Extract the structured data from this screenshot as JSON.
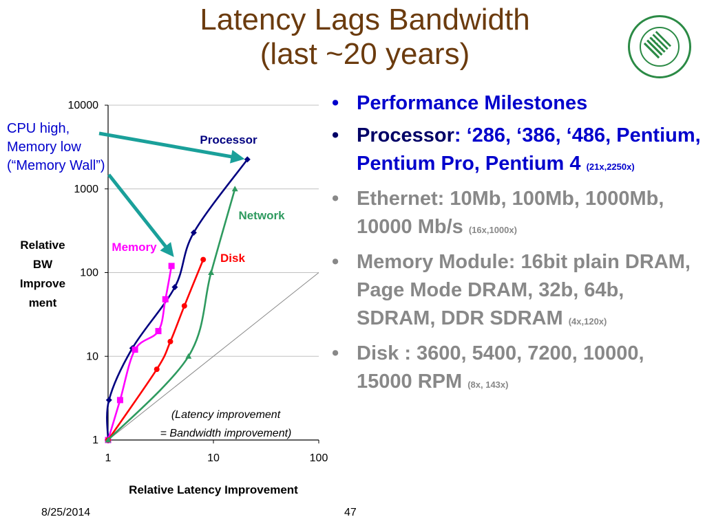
{
  "slide": {
    "title_line1": "Latency Lags Bandwidth",
    "title_line2": "(last ~20 years)",
    "footer_date": "8/25/2014",
    "page_number": "47",
    "logo": {
      "name": "tunghai-university-logo"
    }
  },
  "bullets": [
    {
      "parts": [
        {
          "text": "Performance Milestones",
          "color": "#0000cc"
        }
      ]
    },
    {
      "parts": [
        {
          "text": "Processor",
          "color": "#000066"
        },
        {
          "text": ": ‘286, ‘386, ‘486, Pentium, Pentium Pro, Pentium 4 ",
          "color": "#0000cc"
        },
        {
          "text": "(21x,2250x)",
          "color": "#0000cc",
          "small": true
        }
      ]
    },
    {
      "parts": [
        {
          "text": "Ethernet: 10Mb, 100Mb, 1000Mb, 10000 Mb/s ",
          "color": "#888888"
        },
        {
          "text": "(16x,1000x)",
          "color": "#888888",
          "small": true
        }
      ]
    },
    {
      "parts": [
        {
          "text": "Memory Module: 16bit plain DRAM, Page Mode DRAM, 32b, 64b, SDRAM, DDR SDRAM ",
          "color": "#888888"
        },
        {
          "text": "(4x,120x)",
          "color": "#888888",
          "small": true
        }
      ]
    },
    {
      "parts": [
        {
          "text": "Disk : 3600, 5400, 7200, 10000, 15000 RPM ",
          "color": "#888888"
        },
        {
          "text": "(8x, 143x)",
          "color": "#888888",
          "small": true
        }
      ]
    }
  ],
  "chart_data": {
    "type": "line",
    "xscale": "log",
    "yscale": "log",
    "xlim": [
      1,
      100
    ],
    "ylim": [
      1,
      10000
    ],
    "xticks": [
      "1",
      "10",
      "100"
    ],
    "yticks": [
      "1",
      "10",
      "100",
      "1000",
      "10000"
    ],
    "xlabel": "Relative Latency Improvement",
    "ylabel_lines": [
      "Relative",
      "BW",
      "Improve",
      "ment"
    ],
    "grid": "horizontal",
    "legend": "none",
    "series": [
      {
        "name": "Processor",
        "color": "#000080",
        "marker": "diamond",
        "x": [
          1,
          1.02,
          1.7,
          4.3,
          6.5,
          21
        ],
        "y": [
          1,
          3,
          12.5,
          67,
          300,
          2250
        ]
      },
      {
        "name": "Memory",
        "color": "#ff00ff",
        "marker": "square",
        "x": [
          1,
          1.3,
          1.8,
          3.0,
          3.5,
          4.0
        ],
        "y": [
          1,
          3,
          12,
          20,
          48,
          120
        ]
      },
      {
        "name": "Disk",
        "color": "#ff0000",
        "marker": "circle",
        "x": [
          1,
          2.9,
          3.9,
          5.3,
          8.0
        ],
        "y": [
          1,
          7,
          15,
          40,
          143
        ]
      },
      {
        "name": "Network",
        "color": "#2e9a5f",
        "marker": "triangle",
        "x": [
          1,
          5.8,
          9.5,
          16
        ],
        "y": [
          1,
          10,
          100,
          1000
        ]
      }
    ],
    "reference_line": {
      "x": [
        1,
        100
      ],
      "y": [
        1,
        100
      ],
      "color": "#888888",
      "label_lines": [
        "(Latency improvement",
        "= Bandwidth improvement)"
      ]
    },
    "annotation": {
      "lines": [
        "CPU high,",
        "Memory low",
        "(“Memory Wall”)"
      ],
      "color": "#0000cc",
      "arrow_color": "#1aa09a"
    }
  }
}
